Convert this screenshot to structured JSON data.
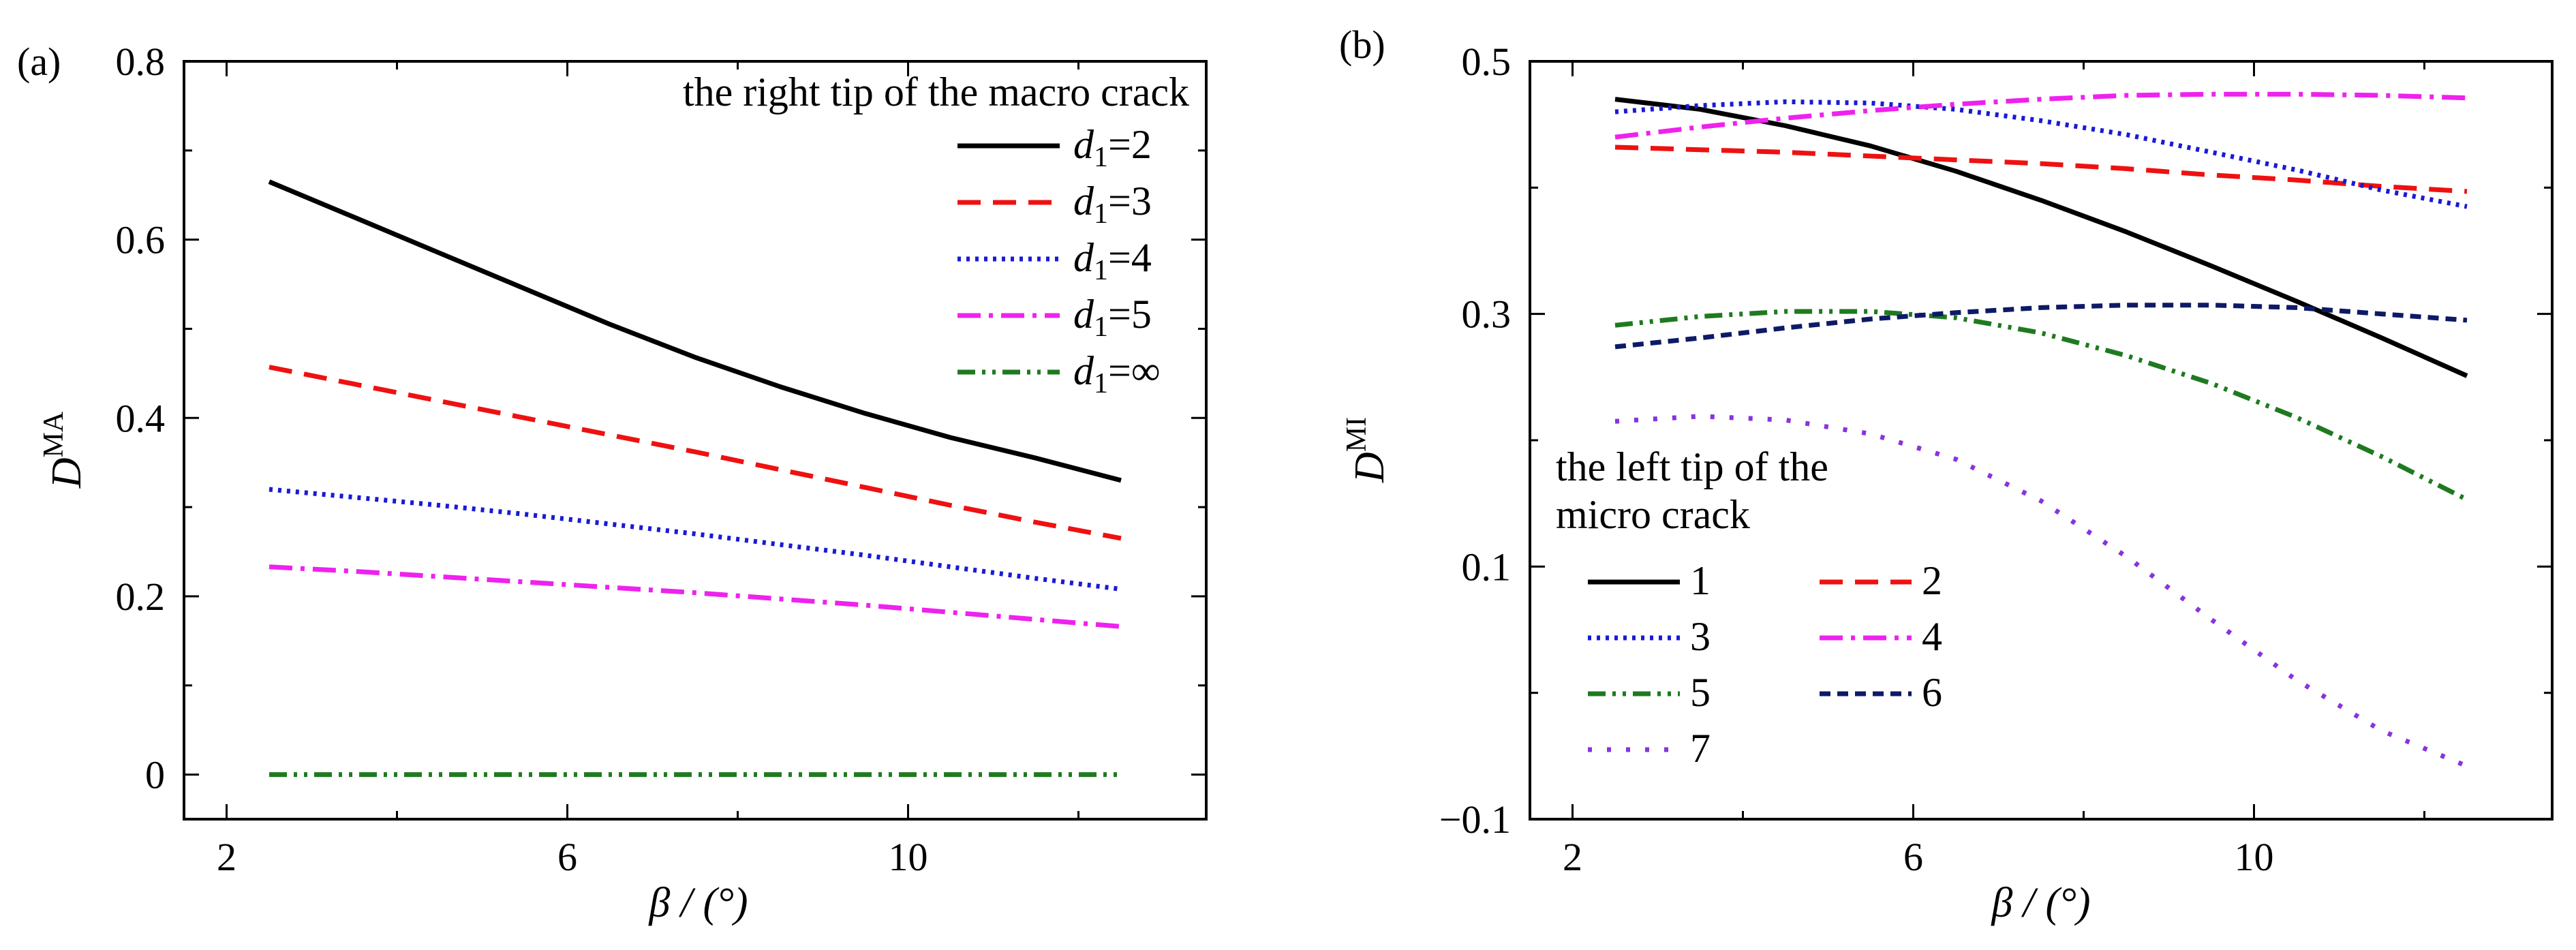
{
  "chart_data": [
    {
      "panel": "(a)",
      "type": "line",
      "title": "the right tip of the macro crack",
      "xlabel": "β / (°)",
      "ylabel": "D^MA",
      "ylabel_main": "D",
      "ylabel_sup": "MA",
      "xlim": [
        1.5,
        13.5
      ],
      "ylim": [
        -0.05,
        0.8
      ],
      "xticks": [
        2,
        6,
        10
      ],
      "yticks": [
        0,
        0.2,
        0.4,
        0.6,
        0.8
      ],
      "xtick_labels": [
        "2",
        "6",
        "10"
      ],
      "ytick_labels": [
        "0",
        "0.2",
        "0.4",
        "0.6",
        "0.8"
      ],
      "x": [
        2.5,
        3.5,
        4.5,
        5.5,
        6.5,
        7.5,
        8.5,
        9.5,
        10.5,
        11.5,
        12.5
      ],
      "series": [
        {
          "name": "d1=2",
          "label_main": "d",
          "label_sub": "1",
          "label_rest": "=2",
          "color": "#000000",
          "dash": "solid",
          "values": [
            0.665,
            0.625,
            0.585,
            0.545,
            0.505,
            0.468,
            0.435,
            0.405,
            0.378,
            0.355,
            0.33
          ]
        },
        {
          "name": "d1=3",
          "label_main": "d",
          "label_sub": "1",
          "label_rest": "=3",
          "color": "#ee1111",
          "dash": "dash",
          "values": [
            0.457,
            0.438,
            0.419,
            0.4,
            0.381,
            0.362,
            0.342,
            0.322,
            0.302,
            0.283,
            0.265
          ]
        },
        {
          "name": "d1=4",
          "label_main": "d",
          "label_sub": "1",
          "label_rest": "=4",
          "color": "#1a1ad6",
          "dash": "dot",
          "values": [
            0.32,
            0.311,
            0.302,
            0.292,
            0.281,
            0.27,
            0.258,
            0.246,
            0.233,
            0.22,
            0.208
          ]
        },
        {
          "name": "d1=5",
          "label_main": "d",
          "label_sub": "1",
          "label_rest": "=5",
          "color": "#ee22ee",
          "dash": "dashdot",
          "values": [
            0.233,
            0.228,
            0.222,
            0.216,
            0.21,
            0.204,
            0.197,
            0.19,
            0.182,
            0.174,
            0.166
          ]
        },
        {
          "name": "d1=∞",
          "label_main": "d",
          "label_sub": "1",
          "label_rest": "=∞",
          "color": "#1f7a1f",
          "dash": "dashdotdot",
          "values": [
            0,
            0,
            0,
            0,
            0,
            0,
            0,
            0,
            0,
            0,
            0
          ]
        }
      ]
    },
    {
      "panel": "(b)",
      "type": "line",
      "title": "the left tip of the micro crack",
      "title_lines": [
        "the left tip of the",
        "micro crack"
      ],
      "xlabel": "β / (°)",
      "ylabel": "D^MI",
      "ylabel_main": "D",
      "ylabel_sup": "MI",
      "xlim": [
        1.5,
        13.5
      ],
      "ylim": [
        -0.1,
        0.5
      ],
      "xticks": [
        2,
        6,
        10
      ],
      "yticks": [
        -0.1,
        0.1,
        0.3,
        0.5
      ],
      "xtick_labels": [
        "2",
        "6",
        "10"
      ],
      "ytick_labels": [
        "−0.1",
        "0.1",
        "0.3",
        "0.5"
      ],
      "x": [
        2.5,
        3.5,
        4.5,
        5.5,
        6.5,
        7.5,
        8.5,
        9.5,
        10.5,
        11.5,
        12.5
      ],
      "series": [
        {
          "name": "1",
          "color": "#000000",
          "dash": "solid",
          "values": [
            0.47,
            0.462,
            0.449,
            0.433,
            0.413,
            0.39,
            0.365,
            0.338,
            0.31,
            0.281,
            0.251
          ]
        },
        {
          "name": "2",
          "color": "#ee1111",
          "dash": "dash",
          "values": [
            0.432,
            0.43,
            0.428,
            0.425,
            0.422,
            0.419,
            0.415,
            0.41,
            0.406,
            0.401,
            0.397
          ]
        },
        {
          "name": "3",
          "color": "#1a1ad6",
          "dash": "dot",
          "values": [
            0.46,
            0.465,
            0.468,
            0.467,
            0.462,
            0.453,
            0.442,
            0.428,
            0.414,
            0.398,
            0.385
          ]
        },
        {
          "name": "4",
          "color": "#ee22ee",
          "dash": "dashdot",
          "values": [
            0.44,
            0.448,
            0.455,
            0.461,
            0.466,
            0.47,
            0.473,
            0.474,
            0.474,
            0.473,
            0.471
          ]
        },
        {
          "name": "5",
          "color": "#1f7a1f",
          "dash": "dashdotdot",
          "values": [
            0.291,
            0.298,
            0.302,
            0.302,
            0.297,
            0.285,
            0.267,
            0.245,
            0.218,
            0.187,
            0.153
          ]
        },
        {
          "name": "6",
          "color": "#0d1a66",
          "dash": "shortdash",
          "values": [
            0.274,
            0.281,
            0.289,
            0.296,
            0.301,
            0.305,
            0.307,
            0.307,
            0.305,
            0.3,
            0.295
          ]
        },
        {
          "name": "7",
          "color": "#8833dd",
          "dash": "sparsedot",
          "values": [
            0.215,
            0.219,
            0.216,
            0.205,
            0.185,
            0.152,
            0.108,
            0.058,
            0.01,
            -0.03,
            -0.058
          ]
        }
      ]
    }
  ]
}
